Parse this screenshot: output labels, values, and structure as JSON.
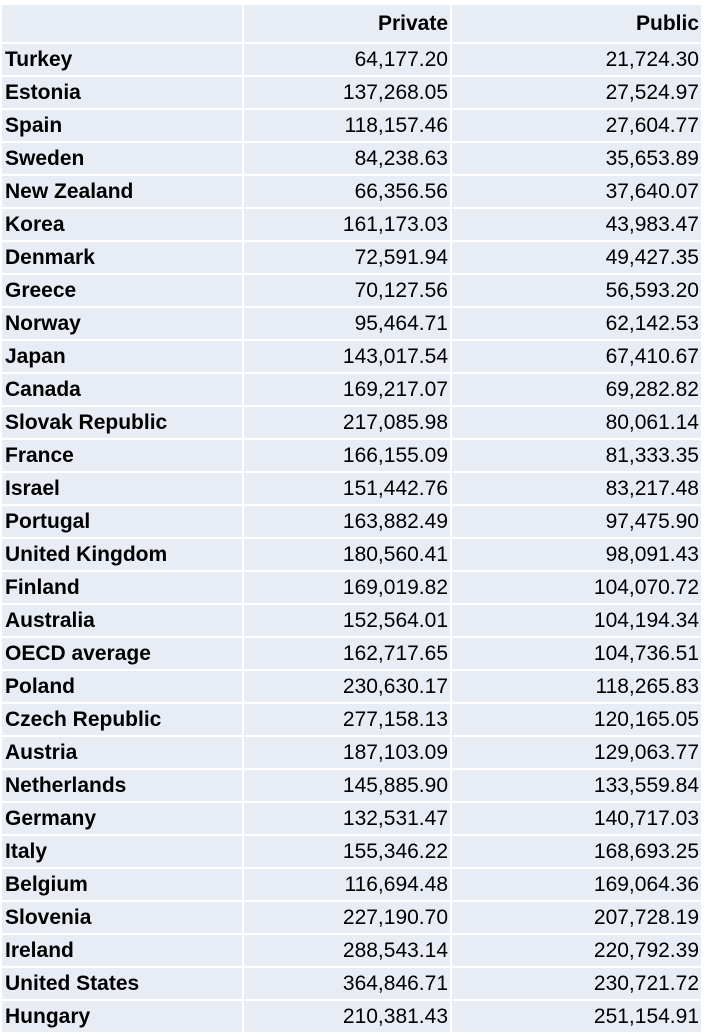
{
  "table": {
    "headers": [
      "",
      "Private",
      "Public"
    ],
    "rows": [
      [
        "Turkey",
        "64,177.20",
        "21,724.30"
      ],
      [
        "Estonia",
        "137,268.05",
        "27,524.97"
      ],
      [
        "Spain",
        "118,157.46",
        "27,604.77"
      ],
      [
        "Sweden",
        "84,238.63",
        "35,653.89"
      ],
      [
        "New Zealand",
        "66,356.56",
        "37,640.07"
      ],
      [
        "Korea",
        "161,173.03",
        "43,983.47"
      ],
      [
        "Denmark",
        "72,591.94",
        "49,427.35"
      ],
      [
        "Greece",
        "70,127.56",
        "56,593.20"
      ],
      [
        "Norway",
        "95,464.71",
        "62,142.53"
      ],
      [
        "Japan",
        "143,017.54",
        "67,410.67"
      ],
      [
        "Canada",
        "169,217.07",
        "69,282.82"
      ],
      [
        "Slovak Republic",
        "217,085.98",
        "80,061.14"
      ],
      [
        "France",
        "166,155.09",
        "81,333.35"
      ],
      [
        "Israel",
        "151,442.76",
        "83,217.48"
      ],
      [
        "Portugal",
        "163,882.49",
        "97,475.90"
      ],
      [
        "United Kingdom",
        "180,560.41",
        "98,091.43"
      ],
      [
        "Finland",
        "169,019.82",
        "104,070.72"
      ],
      [
        "Australia",
        "152,564.01",
        "104,194.34"
      ],
      [
        "OECD average",
        "162,717.65",
        "104,736.51"
      ],
      [
        "Poland",
        "230,630.17",
        "118,265.83"
      ],
      [
        "Czech Republic",
        "277,158.13",
        "120,165.05"
      ],
      [
        "Austria",
        "187,103.09",
        "129,063.77"
      ],
      [
        "Netherlands",
        "145,885.90",
        "133,559.84"
      ],
      [
        "Germany",
        "132,531.47",
        "140,717.03"
      ],
      [
        "Italy",
        "155,346.22",
        "168,693.25"
      ],
      [
        "Belgium",
        "116,694.48",
        "169,064.36"
      ],
      [
        "Slovenia",
        "227,190.70",
        "207,728.19"
      ],
      [
        "Ireland",
        "288,543.14",
        "220,792.39"
      ],
      [
        "United States",
        "364,846.71",
        "230,721.72"
      ],
      [
        "Hungary",
        "210,381.43",
        "251,154.91"
      ]
    ]
  }
}
